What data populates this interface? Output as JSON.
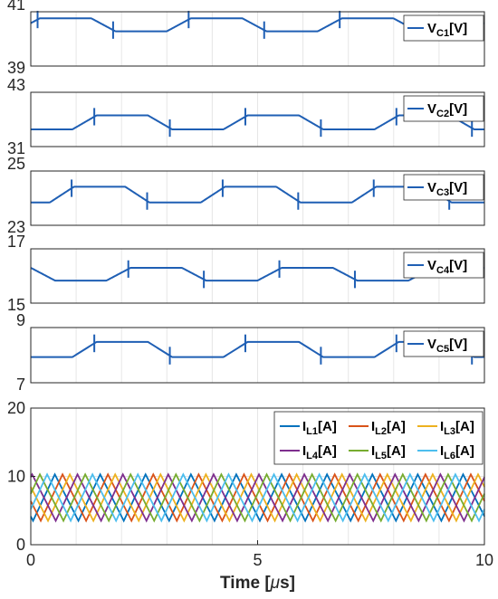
{
  "figure": {
    "xlabel": "Time [μs]",
    "xlabel_main": "Time [",
    "xlabel_mu": "μ",
    "xlabel_tail": "s]",
    "xticks": [
      "0",
      "5",
      "10"
    ]
  },
  "colors": {
    "vc": "#1f5fb4",
    "il": [
      "#0072BD",
      "#D95319",
      "#EDB120",
      "#7E2F8E",
      "#77AC30",
      "#4DBEEE"
    ],
    "grid": "#e6e6e6",
    "axis": "#262626"
  },
  "chart_data": [
    {
      "type": "line",
      "ylim": [
        39,
        41
      ],
      "yticks": [
        "39",
        "41"
      ],
      "legend": "VC1[V]",
      "legend_main": "V",
      "legend_sub": "C1",
      "legend_unit": "[V]",
      "legend_position": "top-right",
      "period_us": 3.33,
      "low": 40.28,
      "high": 40.76,
      "high_start_us": 0.2,
      "x": [
        0,
        10
      ],
      "grid": true
    },
    {
      "type": "line",
      "ylim": [
        31,
        43
      ],
      "yticks": [
        "31",
        "43"
      ],
      "legend": "VC2[V]",
      "legend_main": "V",
      "legend_sub": "C2",
      "legend_unit": "[V]",
      "legend_position": "top-right",
      "period_us": 3.33,
      "low": 34.8,
      "high": 37.9,
      "high_start_us": 1.45,
      "x": [
        0,
        10
      ],
      "grid": true
    },
    {
      "type": "line",
      "ylim": [
        23,
        25
      ],
      "yticks": [
        "23",
        "25"
      ],
      "legend": "VC3[V]",
      "legend_main": "V",
      "legend_sub": "C3",
      "legend_unit": "[V]",
      "legend_position": "top-right",
      "period_us": 3.33,
      "low": 23.84,
      "high": 24.42,
      "high_start_us": 0.95,
      "x": [
        0,
        10
      ],
      "grid": true
    },
    {
      "type": "line",
      "ylim": [
        15,
        17
      ],
      "yticks": [
        "15",
        "17"
      ],
      "legend": "VC4[V]",
      "legend_main": "V",
      "legend_sub": "C4",
      "legend_unit": "[V]",
      "legend_position": "top-right",
      "period_us": 3.33,
      "low": 15.83,
      "high": 16.3,
      "high_start_us": 2.2,
      "x": [
        0,
        10
      ],
      "grid": true
    },
    {
      "type": "line",
      "ylim": [
        7,
        9
      ],
      "yticks": [
        "7",
        "9"
      ],
      "legend": "VC5[V]",
      "legend_main": "V",
      "legend_sub": "C5",
      "legend_unit": "[V]",
      "legend_position": "top-right",
      "period_us": 3.33,
      "low": 7.93,
      "high": 8.48,
      "high_start_us": 1.45,
      "x": [
        0,
        10
      ],
      "grid": true
    },
    {
      "type": "line",
      "ylim": [
        0,
        20
      ],
      "yticks": [
        "0",
        "10",
        "20"
      ],
      "xlim": [
        0,
        10
      ],
      "xticks": [
        "0",
        "5",
        "10"
      ],
      "grid": true,
      "legend_position": "top-right",
      "ripple_period_us": 1.0,
      "min": 3.5,
      "max": 10.3,
      "series": [
        {
          "name": "IL1[A]",
          "main": "I",
          "sub": "L1",
          "unit": "[A]",
          "phase_us": 0.05
        },
        {
          "name": "IL2[A]",
          "main": "I",
          "sub": "L2",
          "unit": "[A]",
          "phase_us": 0.22
        },
        {
          "name": "IL3[A]",
          "main": "I",
          "sub": "L3",
          "unit": "[A]",
          "phase_us": 0.38
        },
        {
          "name": "IL4[A]",
          "main": "I",
          "sub": "L4",
          "unit": "[A]",
          "phase_us": 0.55
        },
        {
          "name": "IL5[A]",
          "main": "I",
          "sub": "L5",
          "unit": "[A]",
          "phase_us": 0.72
        },
        {
          "name": "IL6[A]",
          "main": "I",
          "sub": "L6",
          "unit": "[A]",
          "phase_us": 0.88
        }
      ]
    }
  ]
}
